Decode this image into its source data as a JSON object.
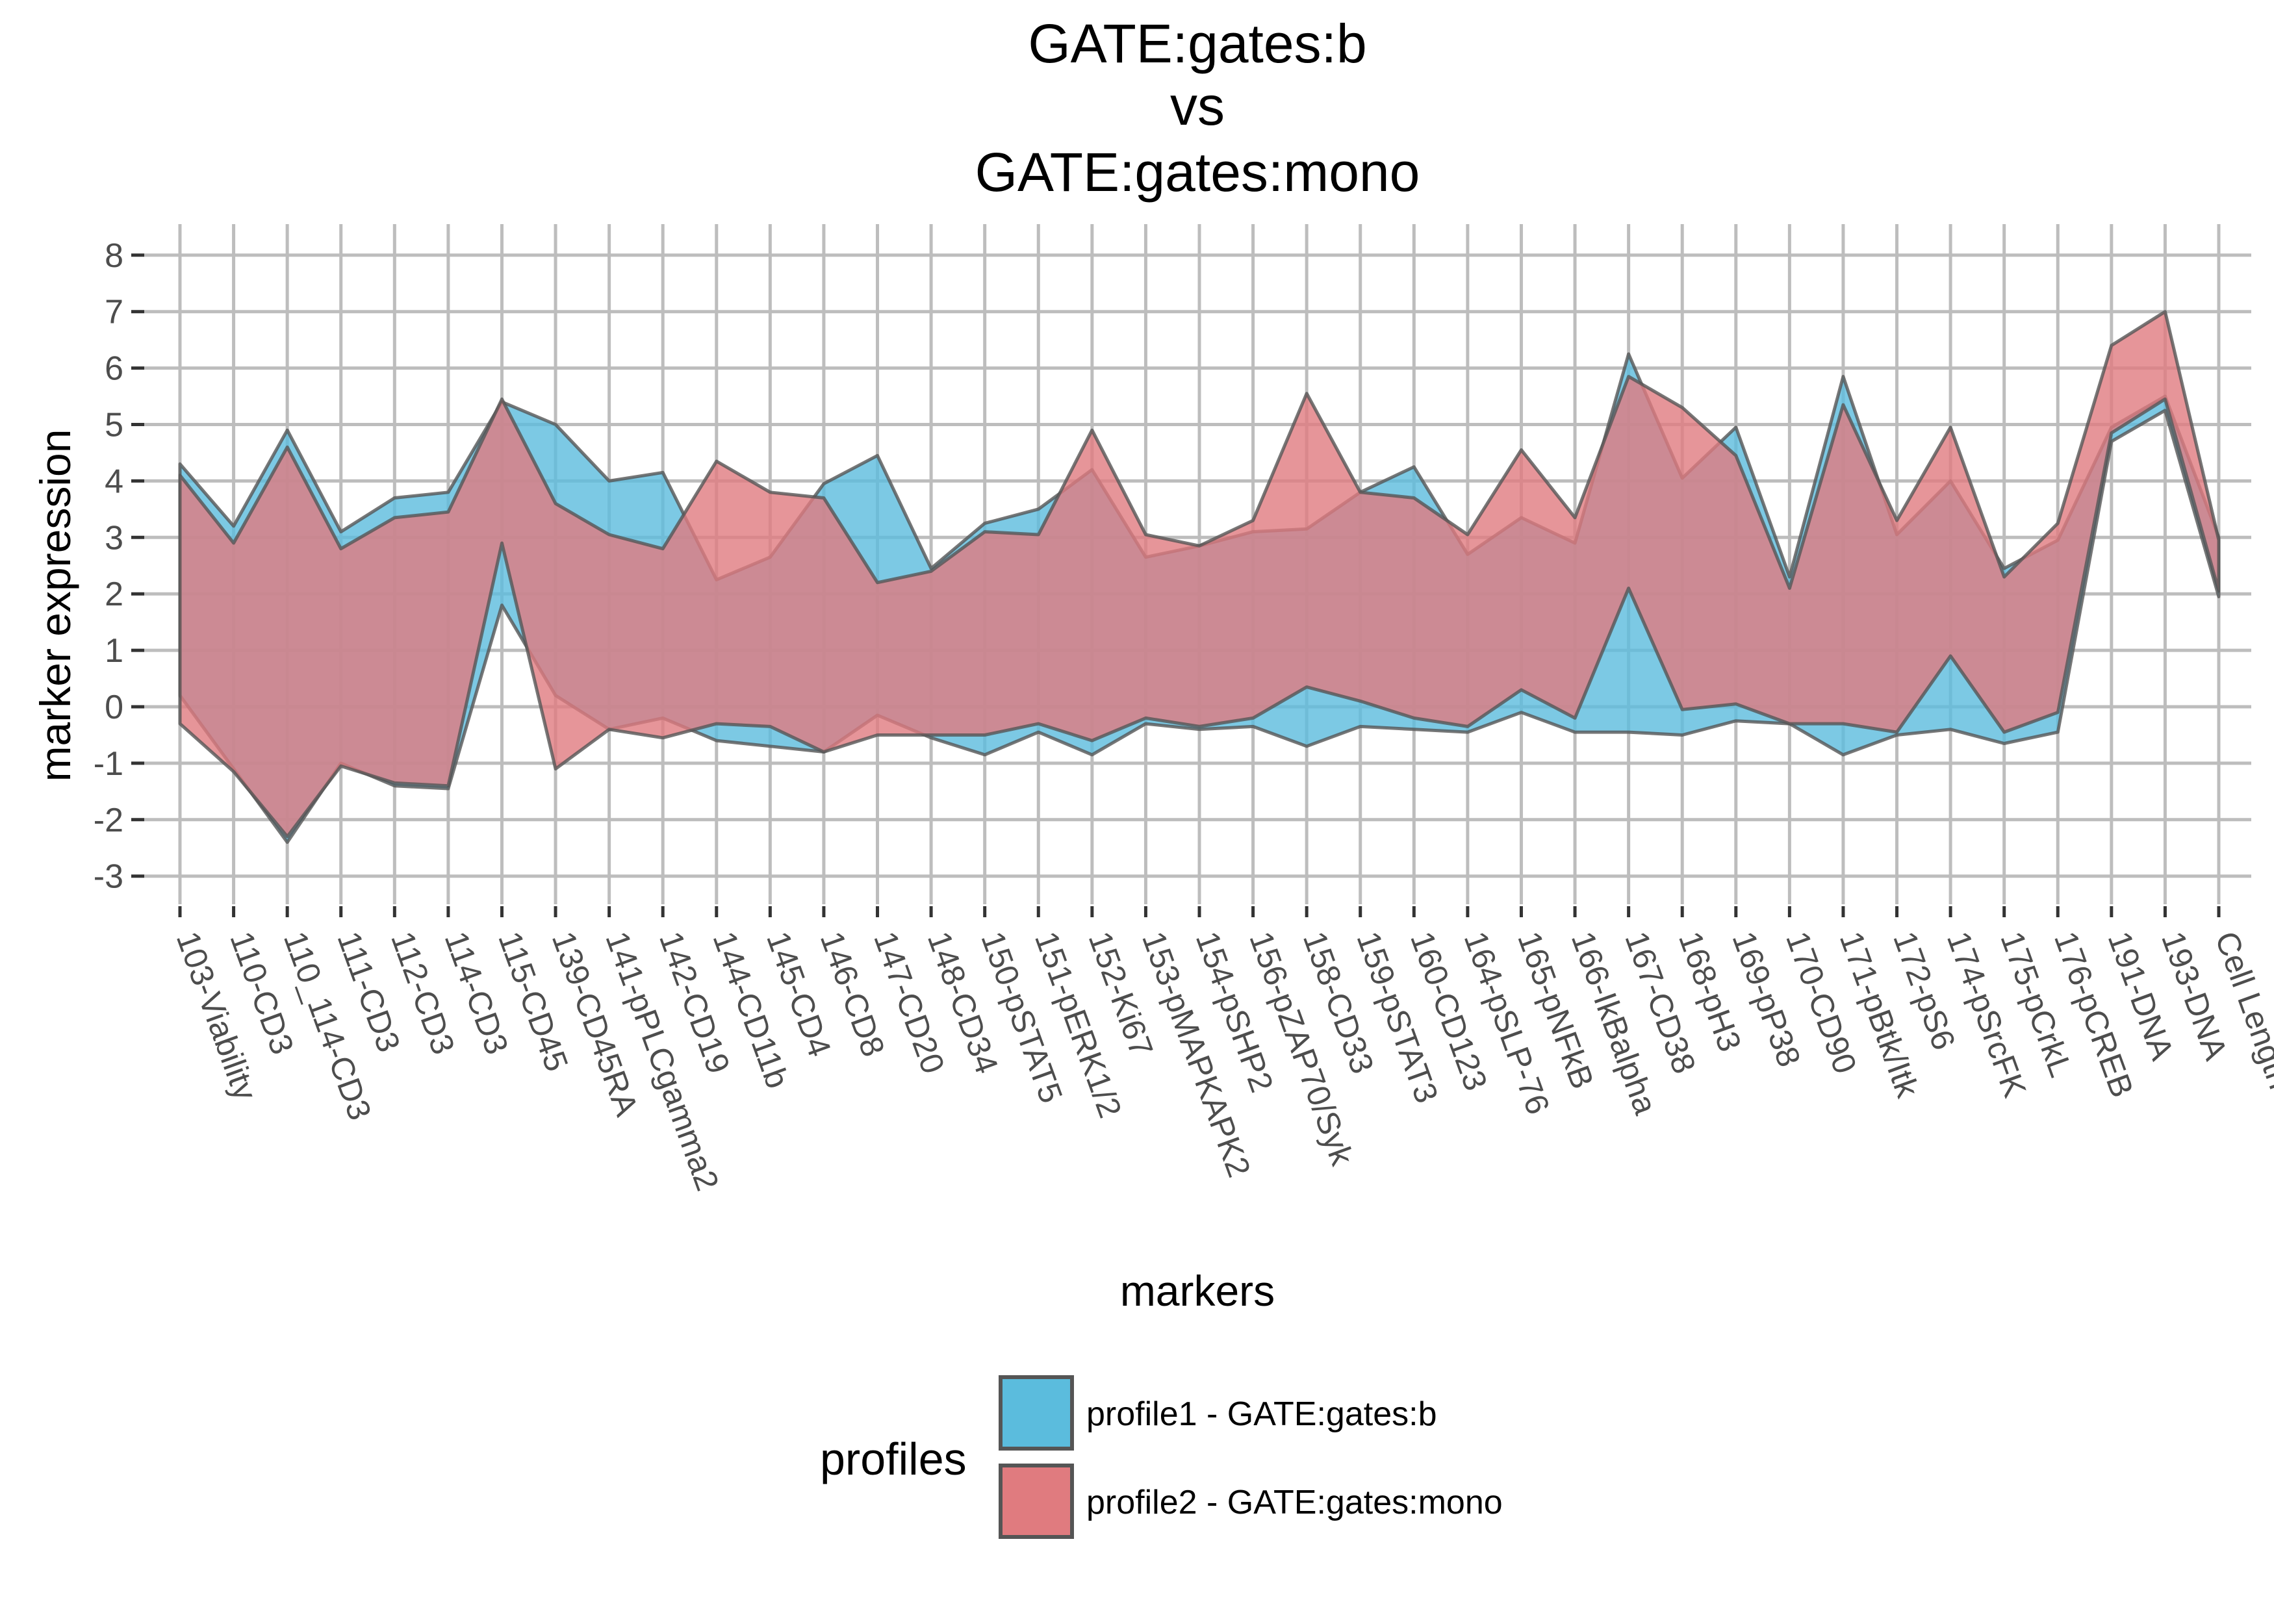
{
  "chart_data": {
    "type": "area",
    "title": [
      "GATE:gates:b",
      "vs",
      "GATE:gates:mono"
    ],
    "xlabel": "markers",
    "ylabel": "marker expression",
    "ylim": [
      -3.5,
      8.5
    ],
    "yticks": [
      -3,
      -2,
      -1,
      0,
      1,
      2,
      3,
      4,
      5,
      6,
      7,
      8
    ],
    "grid": true,
    "categories": [
      "103-Viability",
      "110-CD3",
      "110_114-CD3",
      "111-CD3",
      "112-CD3",
      "114-CD3",
      "115-CD45",
      "139-CD45RA",
      "141-pPLCgamma2",
      "142-CD19",
      "144-CD11b",
      "145-CD4",
      "146-CD8",
      "147-CD20",
      "148-CD34",
      "150-pSTAT5",
      "151-pERK1/2",
      "152-Ki67",
      "153-pMAPKAPK2",
      "154-pSHP2",
      "156-pZAP70/Syk",
      "158-CD33",
      "159-pSTAT3",
      "160-CD123",
      "164-pSLP-76",
      "165-pNFkB",
      "166-IkBalpha",
      "167-CD38",
      "168-pH3",
      "169-pP38",
      "170-CD90",
      "171-pBtk/Itk",
      "172-pS6",
      "174-pSrcFK",
      "175-pCrkL",
      "176-pCREB",
      "191-DNA",
      "193-DNA",
      "Cell Length"
    ],
    "legend": {
      "title": "profiles",
      "position": "bottom"
    },
    "series": [
      {
        "name": "profile1 - GATE:gates:b",
        "color": "#5bbcdd",
        "upper": [
          4.3,
          3.2,
          4.9,
          3.1,
          3.7,
          3.8,
          5.4,
          5.0,
          4.0,
          4.15,
          2.25,
          2.65,
          3.95,
          4.45,
          2.45,
          3.25,
          3.5,
          4.2,
          2.65,
          2.85,
          3.1,
          3.15,
          3.8,
          4.25,
          2.7,
          3.35,
          2.9,
          6.25,
          4.05,
          4.95,
          2.3,
          5.85,
          3.05,
          4.0,
          2.45,
          2.95,
          4.95,
          5.5,
          3.0
        ],
        "lower": [
          0.2,
          -1.1,
          -2.4,
          -1.0,
          -1.4,
          -1.45,
          1.8,
          0.2,
          -0.4,
          -0.2,
          -0.6,
          -0.7,
          -0.8,
          -0.15,
          -0.55,
          -0.85,
          -0.45,
          -0.85,
          -0.3,
          -0.4,
          -0.35,
          -0.7,
          -0.35,
          -0.4,
          -0.45,
          -0.1,
          -0.45,
          -0.45,
          -0.5,
          -0.25,
          -0.3,
          -0.85,
          -0.5,
          -0.4,
          -0.65,
          -0.45,
          4.7,
          5.25,
          1.95
        ]
      },
      {
        "name": "profile2 - GATE:gates:mono",
        "color": "#e07b7f",
        "upper": [
          4.1,
          2.9,
          4.6,
          2.8,
          3.35,
          3.45,
          5.45,
          3.6,
          3.05,
          2.8,
          4.35,
          3.8,
          3.7,
          2.2,
          2.4,
          3.1,
          3.05,
          4.9,
          3.05,
          2.85,
          3.3,
          5.55,
          3.8,
          3.7,
          3.05,
          4.55,
          3.35,
          5.85,
          5.3,
          4.45,
          2.1,
          5.35,
          3.3,
          4.95,
          2.3,
          3.25,
          6.4,
          7.0,
          2.95
        ],
        "lower": [
          -0.3,
          -1.15,
          -2.3,
          -1.05,
          -1.35,
          -1.4,
          2.9,
          -1.1,
          -0.4,
          -0.55,
          -0.3,
          -0.35,
          -0.8,
          -0.5,
          -0.5,
          -0.5,
          -0.3,
          -0.6,
          -0.2,
          -0.35,
          -0.2,
          0.35,
          0.1,
          -0.2,
          -0.35,
          0.3,
          -0.2,
          2.1,
          -0.05,
          0.05,
          -0.3,
          -0.3,
          -0.45,
          0.9,
          -0.45,
          -0.1,
          4.85,
          5.45,
          2.05
        ]
      }
    ]
  }
}
